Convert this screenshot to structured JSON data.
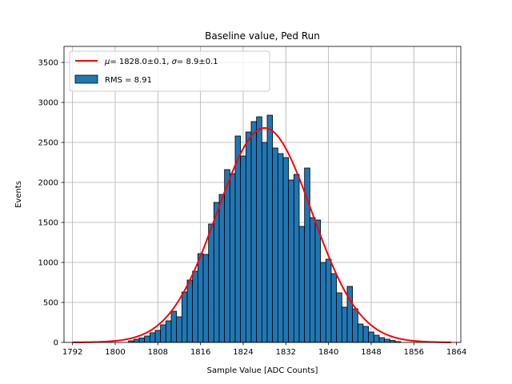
{
  "chart_data": {
    "type": "bar",
    "title": "Baseline value, Ped Run",
    "xlabel": "Sample Value [ADC Counts]",
    "ylabel": "Events",
    "xlim": [
      1790.4,
      1864.8
    ],
    "ylim": [
      0,
      3700
    ],
    "xticks": [
      1792,
      1800,
      1808,
      1816,
      1824,
      1832,
      1840,
      1848,
      1856,
      1864
    ],
    "yticks": [
      0,
      500,
      1000,
      1500,
      2000,
      2500,
      3000,
      3500
    ],
    "grid": true,
    "legend_position": "upper left",
    "bin_width": 1,
    "histogram": {
      "name": "RMS = 8.91",
      "color": "#1f77b4",
      "edgecolor": "#000000",
      "bins": [
        1803,
        1804,
        1805,
        1806,
        1807,
        1808,
        1809,
        1810,
        1811,
        1812,
        1813,
        1814,
        1815,
        1816,
        1817,
        1818,
        1819,
        1820,
        1821,
        1822,
        1823,
        1824,
        1825,
        1826,
        1827,
        1828,
        1829,
        1830,
        1831,
        1832,
        1833,
        1834,
        1835,
        1836,
        1837,
        1838,
        1839,
        1840,
        1841,
        1842,
        1843,
        1844,
        1845,
        1846,
        1847,
        1848,
        1849,
        1850,
        1851,
        1852,
        1853
      ],
      "counts": [
        20,
        40,
        55,
        80,
        120,
        150,
        220,
        270,
        390,
        320,
        630,
        780,
        890,
        1110,
        1100,
        1480,
        1750,
        1850,
        2160,
        2110,
        2580,
        2330,
        2630,
        2760,
        2820,
        2500,
        2840,
        2430,
        2360,
        2310,
        2030,
        2100,
        1450,
        2180,
        1560,
        1530,
        1000,
        1040,
        860,
        620,
        440,
        700,
        420,
        230,
        200,
        130,
        90,
        60,
        40,
        25,
        10
      ]
    },
    "fit": {
      "name": "$\\mu = 1828.0 \\pm 0.1$, $\\sigma = 8.9 \\pm 0.1$",
      "color": "#ff0000",
      "mu": 1828.0,
      "sigma": 8.9,
      "amplitude": 2680,
      "x_range": [
        1792,
        1863
      ]
    },
    "legend": {
      "fit_label_mu_symbol": "μ",
      "fit_label_mu_value": "= 1828.0±0.1, ",
      "fit_label_sigma_symbol": "σ",
      "fit_label_sigma_value": "= 8.9±0.1",
      "hist_label": "RMS = 8.91"
    }
  }
}
